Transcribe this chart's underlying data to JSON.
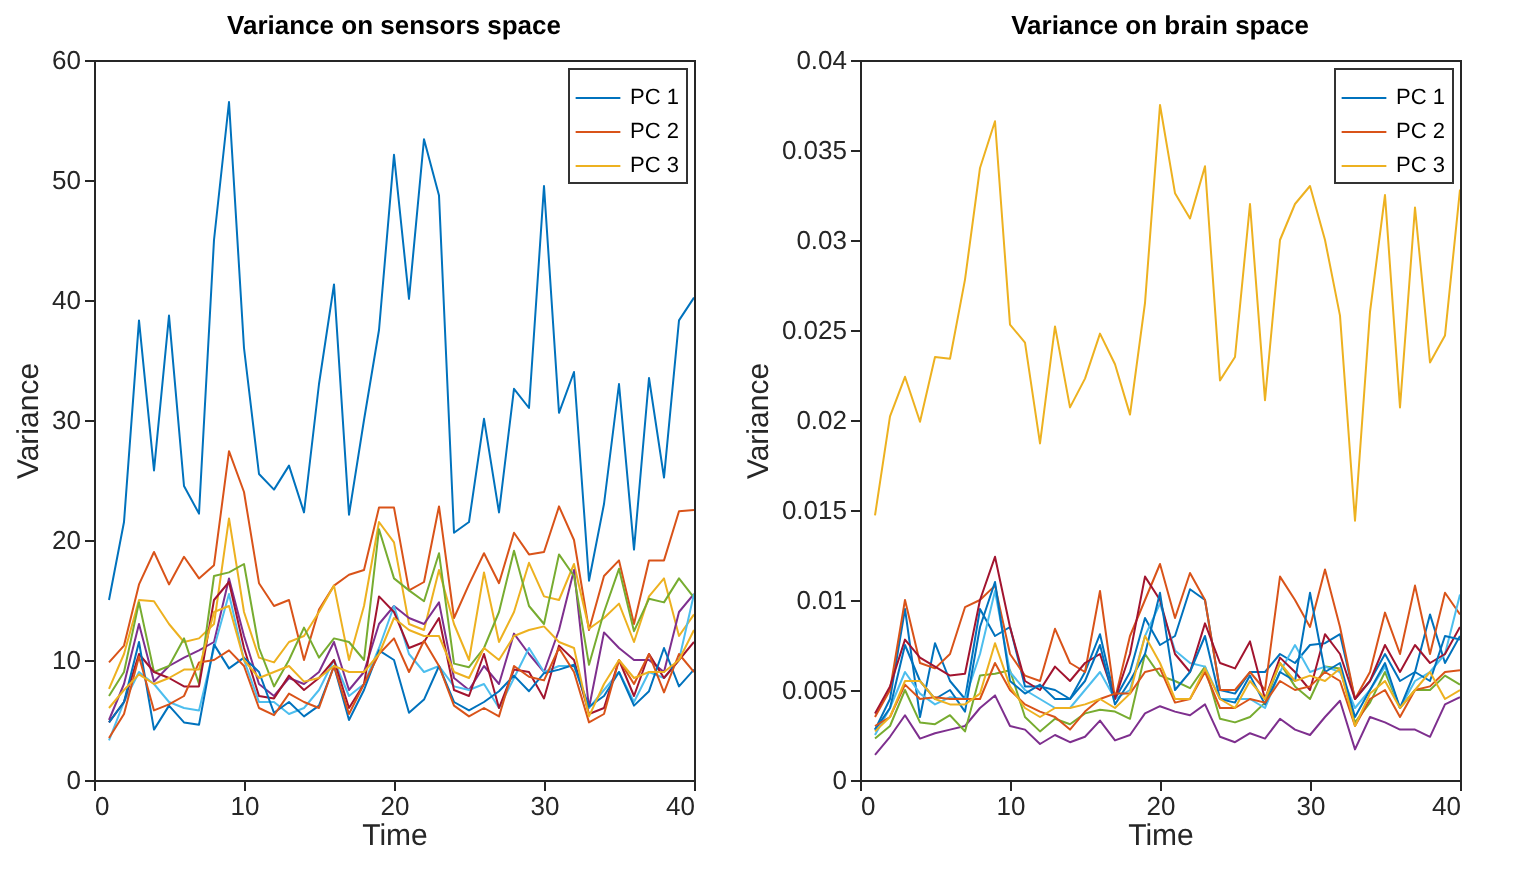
{
  "chart_data": [
    {
      "type": "line",
      "title": "Variance on sensors space",
      "xlabel": "Time",
      "ylabel": "Variance",
      "x": [
        1,
        2,
        3,
        4,
        5,
        6,
        7,
        8,
        9,
        10,
        11,
        12,
        13,
        14,
        15,
        16,
        17,
        18,
        19,
        20,
        21,
        22,
        23,
        24,
        25,
        26,
        27,
        28,
        29,
        30,
        31,
        32,
        33,
        34,
        35,
        36,
        37,
        38,
        39,
        40
      ],
      "xlim": [
        0,
        40
      ],
      "xticks": [
        0,
        10,
        20,
        30,
        40
      ],
      "ylim": [
        0,
        60
      ],
      "yticks": [
        0,
        10,
        20,
        30,
        40,
        50,
        60
      ],
      "grid": false,
      "legend": "top right",
      "marker": "none",
      "line_style": "solid",
      "series": [
        {
          "name": "PC 1",
          "color": "#0072bd",
          "values": [
            15,
            21.5,
            38.3,
            25.8,
            38.7,
            24.5,
            22.2,
            45,
            56.5,
            36,
            25.5,
            24.2,
            26.2,
            22.3,
            33,
            41.3,
            22.1,
            30,
            37.5,
            52.1,
            40.1,
            53.4,
            48.7,
            20.6,
            21.5,
            30.1,
            22.3,
            32.6,
            31,
            49.5,
            30.6,
            34,
            16.6,
            23,
            33,
            19.2,
            33.5,
            25.2,
            38.3,
            40.2
          ]
        },
        {
          "name": "PC 2",
          "color": "#d95319",
          "values": [
            9.8,
            11.2,
            16.3,
            19,
            16.3,
            18.6,
            16.8,
            17.9,
            27.4,
            24,
            16.4,
            14.5,
            15,
            10,
            14.2,
            16.2,
            17.1,
            17.5,
            22.7,
            22.7,
            15.8,
            16.5,
            22.8,
            13.5,
            16.3,
            18.9,
            16.4,
            20.6,
            18.8,
            19,
            22.8,
            20,
            12.5,
            17,
            18.3,
            13,
            18.3,
            18.3,
            22.4,
            22.5
          ]
        },
        {
          "name": "PC 3",
          "color": "#edb120",
          "values": [
            7.6,
            10.5,
            15,
            14.9,
            13,
            11.5,
            11.8,
            13,
            21.8,
            14,
            10.2,
            9.8,
            11.5,
            12,
            14,
            16.2,
            10,
            14.5,
            21.5,
            19.8,
            13,
            12.5,
            17.5,
            13,
            10,
            17.3,
            11.5,
            14,
            18.1,
            15.3,
            15,
            18,
            12.6,
            13.5,
            14.7,
            11.5,
            15.3,
            16.8,
            12,
            13.8
          ]
        },
        {
          "color": "#7e2f8e",
          "values": [
            5,
            8,
            13,
            8.2,
            9.5,
            10.2,
            10.8,
            11.5,
            16.8,
            12,
            8,
            7,
            8.5,
            8,
            9,
            11.5,
            7.5,
            9,
            13,
            14.5,
            13.5,
            13,
            14.8,
            8.5,
            7.5,
            9.5,
            8,
            12.2,
            10.5,
            9,
            12.5,
            17.5,
            6,
            12.3,
            11,
            10,
            10,
            9,
            14,
            15.5
          ]
        },
        {
          "color": "#77ac30",
          "values": [
            7,
            9,
            14.8,
            9,
            9.5,
            11.8,
            8,
            17,
            17.3,
            18,
            11,
            7.8,
            10,
            12.7,
            10.2,
            11.8,
            11.5,
            10,
            20.9,
            16.8,
            15.8,
            14.9,
            18.9,
            9.7,
            9.4,
            11,
            14,
            19.1,
            14.5,
            13,
            18.8,
            17,
            9.6,
            14,
            17.6,
            12.4,
            15.1,
            14.8,
            16.8,
            15.2
          ]
        },
        {
          "color": "#4dbeee",
          "values": [
            3.3,
            6.5,
            9,
            8,
            6.5,
            6,
            5.8,
            11,
            15.5,
            10,
            6.5,
            6.5,
            5.5,
            6,
            7.5,
            10,
            7,
            8,
            11,
            14.5,
            10.5,
            9,
            9.5,
            7.8,
            7.5,
            8,
            6,
            8.5,
            11,
            9,
            9.5,
            9.5,
            6,
            7.5,
            9,
            6.5,
            9,
            8.5,
            10,
            15.5
          ]
        },
        {
          "color": "#a2142f",
          "values": [
            4.8,
            6.5,
            10.5,
            9,
            8.5,
            7.8,
            7.8,
            15,
            16.5,
            11,
            7,
            6.8,
            8.7,
            7.5,
            8.5,
            10,
            6,
            8,
            15.3,
            14,
            11,
            11.5,
            13.5,
            7.5,
            7,
            10.5,
            6,
            9.2,
            9,
            6.8,
            11.2,
            10,
            5.5,
            6,
            10,
            7,
            10.5,
            8.5,
            10,
            11.5
          ]
        },
        {
          "color": "#0072bd",
          "values": [
            4.8,
            6.5,
            11.5,
            4.2,
            6.2,
            4.8,
            4.6,
            11.3,
            9.3,
            10.2,
            9,
            5.6,
            6.5,
            5.3,
            6.2,
            9.5,
            5,
            7.5,
            10.8,
            10,
            5.6,
            6.7,
            9.5,
            6.5,
            5.8,
            6.5,
            7.4,
            8.7,
            7.4,
            8.9,
            9.2,
            9.6,
            6.1,
            7,
            9,
            6.2,
            7.4,
            11,
            7.8,
            9.2
          ]
        },
        {
          "color": "#d95319",
          "values": [
            3.5,
            5.5,
            10.3,
            5.8,
            6.3,
            7,
            9.8,
            10,
            10.8,
            9.5,
            6,
            5.4,
            7.2,
            6.5,
            6,
            9.5,
            5.5,
            8,
            10.5,
            11.8,
            9,
            11.6,
            9.5,
            6.2,
            5.3,
            6,
            5.3,
            9.5,
            8.6,
            8.3,
            11,
            9,
            4.8,
            5.5,
            10,
            8,
            10.5,
            7.3,
            10.5,
            9
          ]
        },
        {
          "color": "#edb120",
          "values": [
            6,
            7.5,
            8.8,
            8,
            8.5,
            9.2,
            9.2,
            14,
            14.5,
            10,
            8.5,
            9,
            9.5,
            8.2,
            8.5,
            9.5,
            9,
            9,
            10.5,
            13.5,
            12.5,
            12,
            12,
            9,
            8.5,
            11,
            10,
            12,
            12.5,
            12.8,
            11.5,
            11,
            5.3,
            8,
            10,
            8.5,
            9,
            9,
            10,
            12.5
          ]
        }
      ]
    },
    {
      "type": "line",
      "title": "Variance on brain space",
      "xlabel": "Time",
      "ylabel": "Variance",
      "x": [
        1,
        2,
        3,
        4,
        5,
        6,
        7,
        8,
        9,
        10,
        11,
        12,
        13,
        14,
        15,
        16,
        17,
        18,
        19,
        20,
        21,
        22,
        23,
        24,
        25,
        26,
        27,
        28,
        29,
        30,
        31,
        32,
        33,
        34,
        35,
        36,
        37,
        38,
        39,
        40
      ],
      "xlim": [
        0,
        40
      ],
      "xticks": [
        0,
        10,
        20,
        30,
        40
      ],
      "ylim": [
        0,
        0.04
      ],
      "yticks": [
        0,
        0.005,
        0.01,
        0.015,
        0.02,
        0.025,
        0.03,
        0.035,
        0.04
      ],
      "grid": false,
      "legend": "top right",
      "marker": "none",
      "line_style": "solid",
      "series": [
        {
          "name": "PC 1",
          "color": "#0072bd",
          "values": [
            0.0028,
            0.0045,
            0.0095,
            0.0035,
            0.0076,
            0.0055,
            0.0045,
            0.0095,
            0.008,
            0.0085,
            0.0052,
            0.0052,
            0.005,
            0.0045,
            0.006,
            0.0081,
            0.0045,
            0.006,
            0.009,
            0.0075,
            0.008,
            0.0106,
            0.01,
            0.005,
            0.0048,
            0.006,
            0.006,
            0.007,
            0.0065,
            0.0075,
            0.0076,
            0.0081,
            0.0045,
            0.0055,
            0.007,
            0.0055,
            0.006,
            0.0092,
            0.0065,
            0.008
          ]
        },
        {
          "name": "PC 2",
          "color": "#d95319",
          "values": [
            0.0035,
            0.005,
            0.01,
            0.0065,
            0.0062,
            0.007,
            0.0096,
            0.01,
            0.0108,
            0.007,
            0.0058,
            0.0055,
            0.0084,
            0.0065,
            0.006,
            0.0105,
            0.0045,
            0.008,
            0.01,
            0.012,
            0.009,
            0.0115,
            0.01,
            0.005,
            0.005,
            0.006,
            0.005,
            0.0113,
            0.01,
            0.0085,
            0.0117,
            0.0085,
            0.0045,
            0.006,
            0.0093,
            0.007,
            0.0108,
            0.007,
            0.0104,
            0.0092
          ]
        },
        {
          "name": "PC 3",
          "color": "#edb120",
          "values": [
            0.0147,
            0.0202,
            0.0224,
            0.0199,
            0.0235,
            0.0234,
            0.0278,
            0.034,
            0.0366,
            0.0253,
            0.0243,
            0.0187,
            0.0252,
            0.0207,
            0.0223,
            0.0248,
            0.0231,
            0.0203,
            0.0265,
            0.0375,
            0.0326,
            0.0312,
            0.0341,
            0.0222,
            0.0235,
            0.032,
            0.0211,
            0.03,
            0.032,
            0.033,
            0.03,
            0.0258,
            0.0144,
            0.026,
            0.0325,
            0.0207,
            0.0318,
            0.0232,
            0.0247,
            0.0328
          ]
        },
        {
          "color": "#7e2f8e",
          "values": [
            0.0014,
            0.0024,
            0.0036,
            0.0023,
            0.0026,
            0.0028,
            0.003,
            0.004,
            0.0047,
            0.003,
            0.0028,
            0.002,
            0.0025,
            0.0021,
            0.0024,
            0.0033,
            0.0022,
            0.0025,
            0.0037,
            0.0041,
            0.0038,
            0.0036,
            0.0042,
            0.0024,
            0.0021,
            0.0026,
            0.0023,
            0.0034,
            0.0028,
            0.0025,
            0.0035,
            0.0044,
            0.0017,
            0.0035,
            0.0032,
            0.0028,
            0.0028,
            0.0024,
            0.0042,
            0.0046
          ]
        },
        {
          "color": "#77ac30",
          "values": [
            0.0023,
            0.003,
            0.005,
            0.0032,
            0.0031,
            0.0036,
            0.0027,
            0.0058,
            0.0059,
            0.0061,
            0.0035,
            0.0027,
            0.0034,
            0.0031,
            0.0037,
            0.0039,
            0.0038,
            0.0034,
            0.007,
            0.0058,
            0.0055,
            0.0051,
            0.0063,
            0.0034,
            0.0032,
            0.0035,
            0.0043,
            0.0065,
            0.0052,
            0.0045,
            0.0063,
            0.0062,
            0.0032,
            0.0043,
            0.006,
            0.004,
            0.005,
            0.005,
            0.0058,
            0.0053
          ]
        },
        {
          "color": "#4dbeee",
          "values": [
            0.0025,
            0.004,
            0.006,
            0.0048,
            0.0042,
            0.0046,
            0.0045,
            0.007,
            0.0105,
            0.006,
            0.005,
            0.0045,
            0.004,
            0.004,
            0.005,
            0.006,
            0.0045,
            0.005,
            0.008,
            0.0098,
            0.0072,
            0.0065,
            0.0063,
            0.0045,
            0.0045,
            0.0045,
            0.004,
            0.006,
            0.0075,
            0.006,
            0.0063,
            0.006,
            0.004,
            0.005,
            0.0063,
            0.004,
            0.0055,
            0.006,
            0.007,
            0.0103
          ]
        },
        {
          "color": "#a2142f",
          "values": [
            0.0037,
            0.0052,
            0.0078,
            0.0068,
            0.0063,
            0.0058,
            0.0059,
            0.01,
            0.0124,
            0.0085,
            0.0055,
            0.005,
            0.0063,
            0.0055,
            0.0065,
            0.007,
            0.0045,
            0.007,
            0.0113,
            0.01,
            0.007,
            0.006,
            0.0087,
            0.0065,
            0.0062,
            0.0077,
            0.0045,
            0.0068,
            0.006,
            0.005,
            0.0081,
            0.007,
            0.0045,
            0.0055,
            0.0075,
            0.006,
            0.0075,
            0.0065,
            0.007,
            0.0085
          ]
        },
        {
          "color": "#0072bd",
          "values": [
            0.0028,
            0.004,
            0.0075,
            0.0055,
            0.0045,
            0.005,
            0.0038,
            0.0085,
            0.011,
            0.0055,
            0.0048,
            0.0053,
            0.0045,
            0.0045,
            0.0055,
            0.0075,
            0.0042,
            0.0055,
            0.007,
            0.0104,
            0.005,
            0.006,
            0.008,
            0.0045,
            0.0043,
            0.0058,
            0.0042,
            0.006,
            0.0055,
            0.0104,
            0.006,
            0.0065,
            0.0035,
            0.005,
            0.0065,
            0.004,
            0.006,
            0.0055,
            0.008,
            0.0078
          ]
        },
        {
          "color": "#d95319",
          "values": [
            0.003,
            0.0035,
            0.0053,
            0.0045,
            0.0046,
            0.0045,
            0.0045,
            0.0045,
            0.0065,
            0.005,
            0.0042,
            0.0038,
            0.0035,
            0.0028,
            0.0038,
            0.0045,
            0.0048,
            0.0048,
            0.006,
            0.0062,
            0.0043,
            0.0045,
            0.006,
            0.004,
            0.004,
            0.0045,
            0.0043,
            0.0055,
            0.005,
            0.0052,
            0.006,
            0.0055,
            0.003,
            0.0045,
            0.005,
            0.0035,
            0.005,
            0.0052,
            0.006,
            0.0061
          ]
        },
        {
          "color": "#edb120",
          "values": [
            0.0027,
            0.0035,
            0.0055,
            0.0055,
            0.0045,
            0.0042,
            0.0042,
            0.0048,
            0.0076,
            0.0052,
            0.004,
            0.0035,
            0.004,
            0.004,
            0.0042,
            0.0045,
            0.004,
            0.0048,
            0.008,
            0.0065,
            0.0045,
            0.0045,
            0.0062,
            0.0045,
            0.004,
            0.0055,
            0.0045,
            0.0065,
            0.0055,
            0.0058,
            0.0055,
            0.0062,
            0.003,
            0.0048,
            0.0055,
            0.004,
            0.005,
            0.006,
            0.0045,
            0.005
          ]
        }
      ]
    }
  ]
}
